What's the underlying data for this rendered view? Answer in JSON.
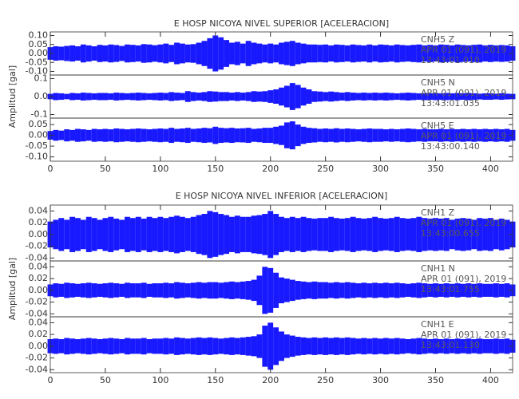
{
  "chart_data": [
    {
      "type": "seismogram",
      "title": "E HOSP NICOYA NIVEL SUPERIOR [ACELERACION]",
      "ylabel": "Amplitud [gal]",
      "color": "#0000ff",
      "xlim": [
        0,
        420
      ],
      "xticks": [
        0,
        50,
        100,
        150,
        200,
        250,
        300,
        350,
        400
      ],
      "x": [
        0,
        5,
        10,
        15,
        20,
        25,
        30,
        35,
        40,
        45,
        50,
        55,
        60,
        65,
        70,
        75,
        80,
        85,
        90,
        95,
        100,
        105,
        110,
        115,
        120,
        125,
        130,
        135,
        140,
        145,
        150,
        155,
        160,
        165,
        170,
        175,
        180,
        185,
        190,
        195,
        200,
        205,
        210,
        215,
        220,
        225,
        230,
        235,
        240,
        245,
        250,
        255,
        260,
        265,
        270,
        275,
        280,
        285,
        290,
        295,
        300,
        305,
        310,
        315,
        320,
        325,
        330,
        335,
        340,
        345,
        350,
        355,
        360,
        365,
        370,
        375,
        380,
        385,
        390,
        395,
        400,
        405,
        410,
        415,
        420
      ],
      "panels": [
        {
          "annotations": [
            "CNH5 Z",
            "APR 01 (091), 2019",
            "13:43:01.010"
          ],
          "ylim": [
            -0.12,
            0.12
          ],
          "yticks": [
            {
              "value": -0.1,
              "label": "-0.10"
            },
            -0.05,
            {
              "value": 0,
              "label": "0.00"
            },
            0.05,
            {
              "value": 0.1,
              "label": "0.10"
            }
          ],
          "values": [
            0.035,
            0.04,
            0.038,
            0.042,
            0.045,
            0.04,
            0.05,
            0.045,
            0.04,
            0.048,
            0.045,
            0.05,
            0.047,
            0.042,
            0.05,
            0.048,
            0.045,
            0.052,
            0.05,
            0.046,
            0.05,
            0.055,
            0.048,
            0.06,
            0.055,
            0.05,
            0.052,
            0.06,
            0.07,
            0.085,
            0.1,
            0.09,
            0.075,
            0.06,
            0.065,
            0.055,
            0.07,
            0.06,
            0.055,
            0.05,
            0.055,
            0.05,
            0.06,
            0.065,
            0.07,
            0.06,
            0.055,
            0.05,
            0.05,
            0.048,
            0.05,
            0.045,
            0.05,
            0.048,
            0.045,
            0.05,
            0.047,
            0.045,
            0.05,
            0.045,
            0.05,
            0.048,
            0.045,
            0.05,
            0.047,
            0.045,
            0.048,
            0.05,
            0.045,
            0.048,
            0.045,
            0.05,
            0.048,
            0.045,
            0.05,
            0.047,
            0.045,
            0.048,
            0.05,
            0.045,
            0.048,
            0.045,
            0.047,
            0.045,
            0.04
          ]
        },
        {
          "annotations": [
            "CNH5 N",
            "APR 01 (091), 2019",
            "13:43:01.035"
          ],
          "ylim": [
            -0.12,
            0.12
          ],
          "yticks": [
            -0.1,
            {
              "value": 0,
              "label": "0.0"
            },
            0.1
          ],
          "values": [
            0.015,
            0.02,
            0.018,
            0.015,
            0.02,
            0.018,
            0.022,
            0.02,
            0.018,
            0.02,
            0.02,
            0.018,
            0.022,
            0.02,
            0.018,
            0.02,
            0.022,
            0.02,
            0.018,
            0.02,
            0.022,
            0.02,
            0.025,
            0.022,
            0.02,
            0.03,
            0.025,
            0.022,
            0.025,
            0.03,
            0.028,
            0.025,
            0.025,
            0.022,
            0.025,
            0.022,
            0.025,
            0.03,
            0.028,
            0.03,
            0.035,
            0.04,
            0.05,
            0.06,
            0.075,
            0.065,
            0.05,
            0.04,
            0.03,
            0.028,
            0.025,
            0.028,
            0.025,
            0.022,
            0.025,
            0.022,
            0.02,
            0.022,
            0.02,
            0.022,
            0.02,
            0.022,
            0.02,
            0.018,
            0.02,
            0.022,
            0.02,
            0.018,
            0.02,
            0.018,
            0.02,
            0.018,
            0.02,
            0.018,
            0.02,
            0.018,
            0.02,
            0.018,
            0.016,
            0.018,
            0.018,
            0.016,
            0.018,
            0.016,
            0.015
          ]
        },
        {
          "annotations": [
            "CNH5 E",
            "APR 01 (091), 2019",
            "13:43:00.140"
          ],
          "ylim": [
            -0.12,
            0.08
          ],
          "yticks": [
            {
              "value": -0.1,
              "label": "-0.10"
            },
            -0.05,
            {
              "value": 0,
              "label": "0.00"
            },
            0.05
          ],
          "values": [
            0.02,
            0.025,
            0.022,
            0.028,
            0.025,
            0.03,
            0.028,
            0.025,
            0.03,
            0.028,
            0.03,
            0.028,
            0.032,
            0.03,
            0.028,
            0.03,
            0.032,
            0.03,
            0.028,
            0.03,
            0.032,
            0.03,
            0.035,
            0.03,
            0.032,
            0.035,
            0.03,
            0.032,
            0.035,
            0.033,
            0.04,
            0.035,
            0.033,
            0.035,
            0.032,
            0.033,
            0.035,
            0.03,
            0.032,
            0.035,
            0.035,
            0.04,
            0.045,
            0.06,
            0.065,
            0.05,
            0.04,
            0.035,
            0.033,
            0.03,
            0.032,
            0.03,
            0.033,
            0.03,
            0.032,
            0.03,
            0.028,
            0.03,
            0.032,
            0.03,
            0.03,
            0.028,
            0.03,
            0.028,
            0.03,
            0.032,
            0.03,
            0.028,
            0.03,
            0.028,
            0.028,
            0.03,
            0.028,
            0.03,
            0.028,
            0.03,
            0.028,
            0.03,
            0.028,
            0.03,
            0.028,
            0.03,
            0.028,
            0.03,
            0.025
          ]
        }
      ]
    },
    {
      "type": "seismogram",
      "title": "E HOSP NICOYA NIVEL INFERIOR [ACELERACION]",
      "ylabel": "Amplitud [gal]",
      "color": "#0000ff",
      "xlim": [
        0,
        420
      ],
      "xticks": [
        0,
        50,
        100,
        150,
        200,
        250,
        300,
        350,
        400
      ],
      "x": [
        0,
        5,
        10,
        15,
        20,
        25,
        30,
        35,
        40,
        45,
        50,
        55,
        60,
        65,
        70,
        75,
        80,
        85,
        90,
        95,
        100,
        105,
        110,
        115,
        120,
        125,
        130,
        135,
        140,
        145,
        150,
        155,
        160,
        165,
        170,
        175,
        180,
        185,
        190,
        195,
        200,
        205,
        210,
        215,
        220,
        225,
        230,
        235,
        240,
        245,
        250,
        255,
        260,
        265,
        270,
        275,
        280,
        285,
        290,
        295,
        300,
        305,
        310,
        315,
        320,
        325,
        330,
        335,
        340,
        345,
        350,
        355,
        360,
        365,
        370,
        375,
        380,
        385,
        390,
        395,
        400,
        405,
        410,
        415,
        420
      ],
      "panels": [
        {
          "annotations": [
            "CNH1 Z",
            "APR 01 (091), 2019",
            "13:43:00.655"
          ],
          "ylim": [
            -0.045,
            0.05
          ],
          "yticks": [
            -0.04,
            -0.02,
            {
              "value": 0,
              "label": "0.00"
            },
            0.02,
            0.04
          ],
          "values": [
            0.022,
            0.025,
            0.028,
            0.025,
            0.03,
            0.028,
            0.025,
            0.03,
            0.028,
            0.025,
            0.028,
            0.03,
            0.027,
            0.025,
            0.03,
            0.028,
            0.03,
            0.027,
            0.03,
            0.028,
            0.03,
            0.028,
            0.03,
            0.032,
            0.03,
            0.028,
            0.03,
            0.033,
            0.035,
            0.04,
            0.038,
            0.035,
            0.033,
            0.03,
            0.032,
            0.03,
            0.03,
            0.032,
            0.033,
            0.035,
            0.04,
            0.035,
            0.03,
            0.028,
            0.03,
            0.028,
            0.03,
            0.028,
            0.027,
            0.028,
            0.028,
            0.03,
            0.028,
            0.027,
            0.028,
            0.03,
            0.028,
            0.027,
            0.028,
            0.03,
            0.028,
            0.027,
            0.028,
            0.03,
            0.028,
            0.027,
            0.028,
            0.03,
            0.028,
            0.027,
            0.028,
            0.027,
            0.028,
            0.025,
            0.027,
            0.028,
            0.027,
            0.025,
            0.028,
            0.027,
            0.028,
            0.025,
            0.027,
            0.025,
            0.022
          ]
        },
        {
          "annotations": [
            "CNH1 N",
            "APR 01 (091), 2019",
            "13:43:01.755"
          ],
          "ylim": [
            -0.045,
            0.05
          ],
          "yticks": [
            -0.04,
            -0.02,
            {
              "value": 0,
              "label": "0.00"
            },
            0.02,
            0.04
          ],
          "values": [
            0.01,
            0.012,
            0.011,
            0.013,
            0.012,
            0.011,
            0.012,
            0.013,
            0.012,
            0.011,
            0.012,
            0.013,
            0.012,
            0.011,
            0.013,
            0.012,
            0.012,
            0.013,
            0.011,
            0.012,
            0.012,
            0.013,
            0.012,
            0.014,
            0.013,
            0.012,
            0.013,
            0.014,
            0.013,
            0.014,
            0.014,
            0.013,
            0.014,
            0.015,
            0.014,
            0.015,
            0.016,
            0.018,
            0.025,
            0.04,
            0.038,
            0.03,
            0.022,
            0.02,
            0.018,
            0.016,
            0.015,
            0.014,
            0.015,
            0.014,
            0.014,
            0.013,
            0.014,
            0.013,
            0.014,
            0.013,
            0.012,
            0.013,
            0.012,
            0.013,
            0.012,
            0.013,
            0.012,
            0.013,
            0.012,
            0.011,
            0.012,
            0.013,
            0.012,
            0.011,
            0.012,
            0.011,
            0.012,
            0.011,
            0.012,
            0.011,
            0.012,
            0.011,
            0.012,
            0.011,
            0.011,
            0.012,
            0.011,
            0.012,
            0.01
          ]
        },
        {
          "annotations": [
            "CNH1 E",
            "APR 01 (091), 2019",
            "13:43:01.130"
          ],
          "ylim": [
            -0.045,
            0.05
          ],
          "yticks": [
            -0.04,
            -0.02,
            {
              "value": 0,
              "label": "0.00"
            },
            0.02,
            0.04
          ],
          "values": [
            0.012,
            0.013,
            0.012,
            0.014,
            0.013,
            0.012,
            0.013,
            0.014,
            0.013,
            0.012,
            0.013,
            0.014,
            0.013,
            0.012,
            0.014,
            0.013,
            0.013,
            0.014,
            0.012,
            0.013,
            0.013,
            0.014,
            0.013,
            0.015,
            0.014,
            0.013,
            0.014,
            0.015,
            0.014,
            0.015,
            0.014,
            0.013,
            0.014,
            0.015,
            0.014,
            0.015,
            0.016,
            0.017,
            0.02,
            0.035,
            0.04,
            0.032,
            0.025,
            0.02,
            0.018,
            0.016,
            0.015,
            0.014,
            0.015,
            0.014,
            0.015,
            0.014,
            0.015,
            0.014,
            0.015,
            0.014,
            0.013,
            0.014,
            0.013,
            0.014,
            0.013,
            0.014,
            0.013,
            0.014,
            0.013,
            0.012,
            0.013,
            0.014,
            0.013,
            0.012,
            0.013,
            0.012,
            0.013,
            0.012,
            0.013,
            0.012,
            0.013,
            0.012,
            0.013,
            0.012,
            0.012,
            0.013,
            0.012,
            0.013,
            0.011
          ]
        }
      ]
    }
  ]
}
